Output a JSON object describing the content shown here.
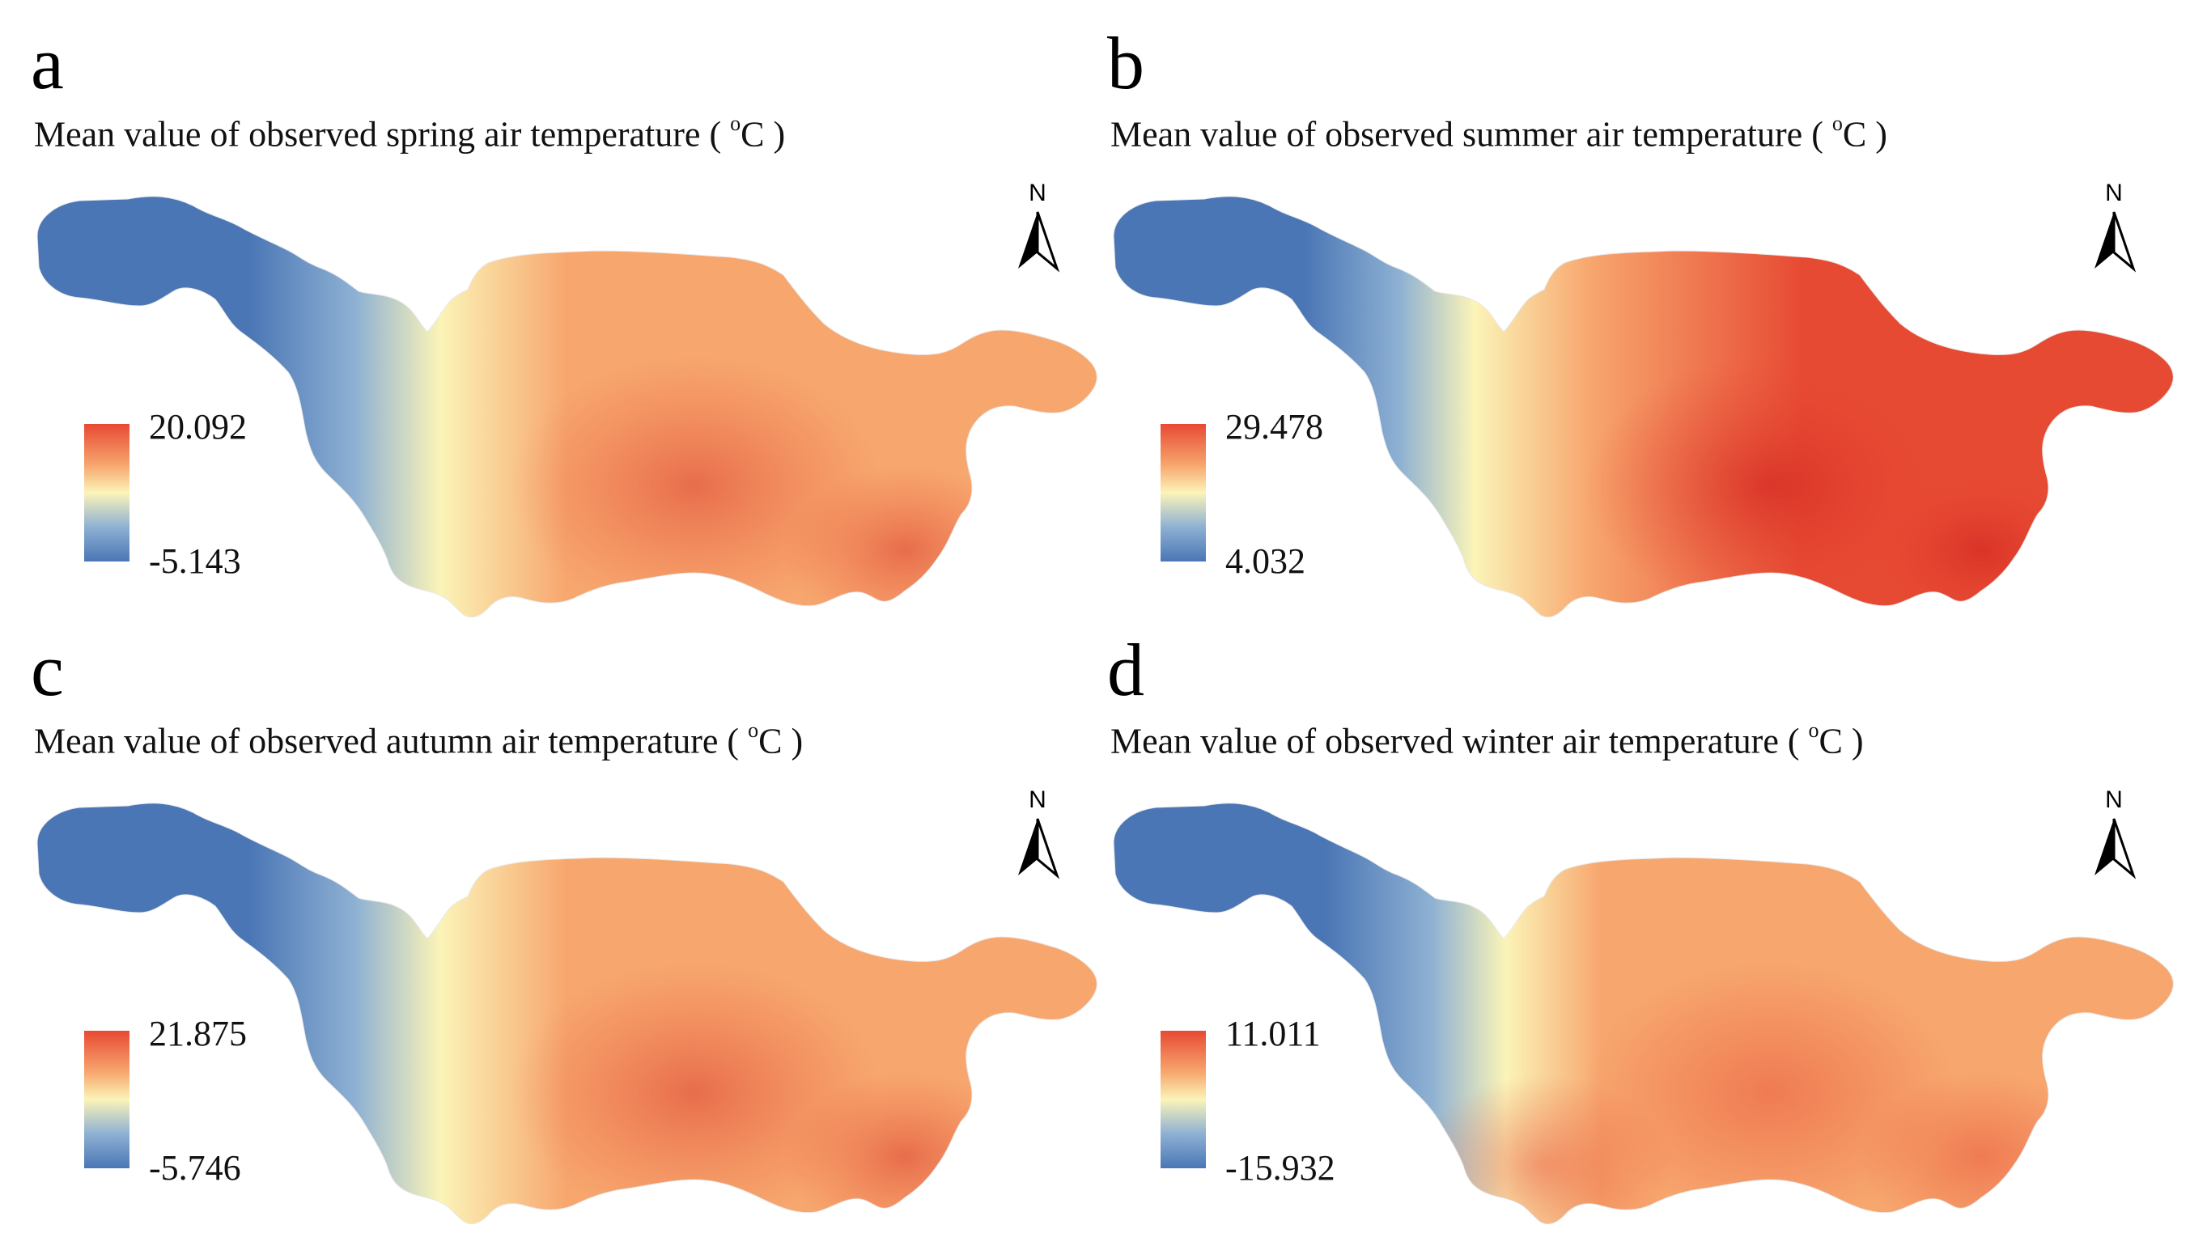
{
  "colors": {
    "cold": "#4a76b5",
    "cool": "#8eb1d3",
    "mid": "#fbf4b8",
    "warm": "#f7a66e",
    "hot": "#e74a33",
    "hottest": "#d62c24"
  },
  "map_data": {
    "type": "choropleth-raster",
    "region": "river basin",
    "north_arrow_label": "N",
    "panels": [
      {
        "id": "a",
        "letter": "a",
        "title_prefix": "Mean value of observed spring air temperature (",
        "title_unit_sup": "o",
        "title_suffix": "C )",
        "legend_max": "20.092",
        "legend_min": "-5.143",
        "max_value": 20.092,
        "min_value": -5.143,
        "season": "spring"
      },
      {
        "id": "b",
        "letter": "b",
        "title_prefix": "Mean value of observed summer air temperature (",
        "title_unit_sup": "o",
        "title_suffix": "C )",
        "legend_max": "29.478",
        "legend_min": "4.032",
        "max_value": 29.478,
        "min_value": 4.032,
        "season": "summer"
      },
      {
        "id": "c",
        "letter": "c",
        "title_prefix": "Mean value of observed autumn air temperature (",
        "title_unit_sup": "o",
        "title_suffix": "C )",
        "legend_max": "21.875",
        "legend_min": "-5.746",
        "max_value": 21.875,
        "min_value": -5.746,
        "season": "autumn"
      },
      {
        "id": "d",
        "letter": "d",
        "title_prefix": "Mean value of observed winter air temperature (",
        "title_unit_sup": "o",
        "title_suffix": "C )",
        "legend_max": "11.011",
        "legend_min": "-15.932",
        "max_value": 11.011,
        "min_value": -15.932,
        "season": "winter"
      }
    ]
  }
}
